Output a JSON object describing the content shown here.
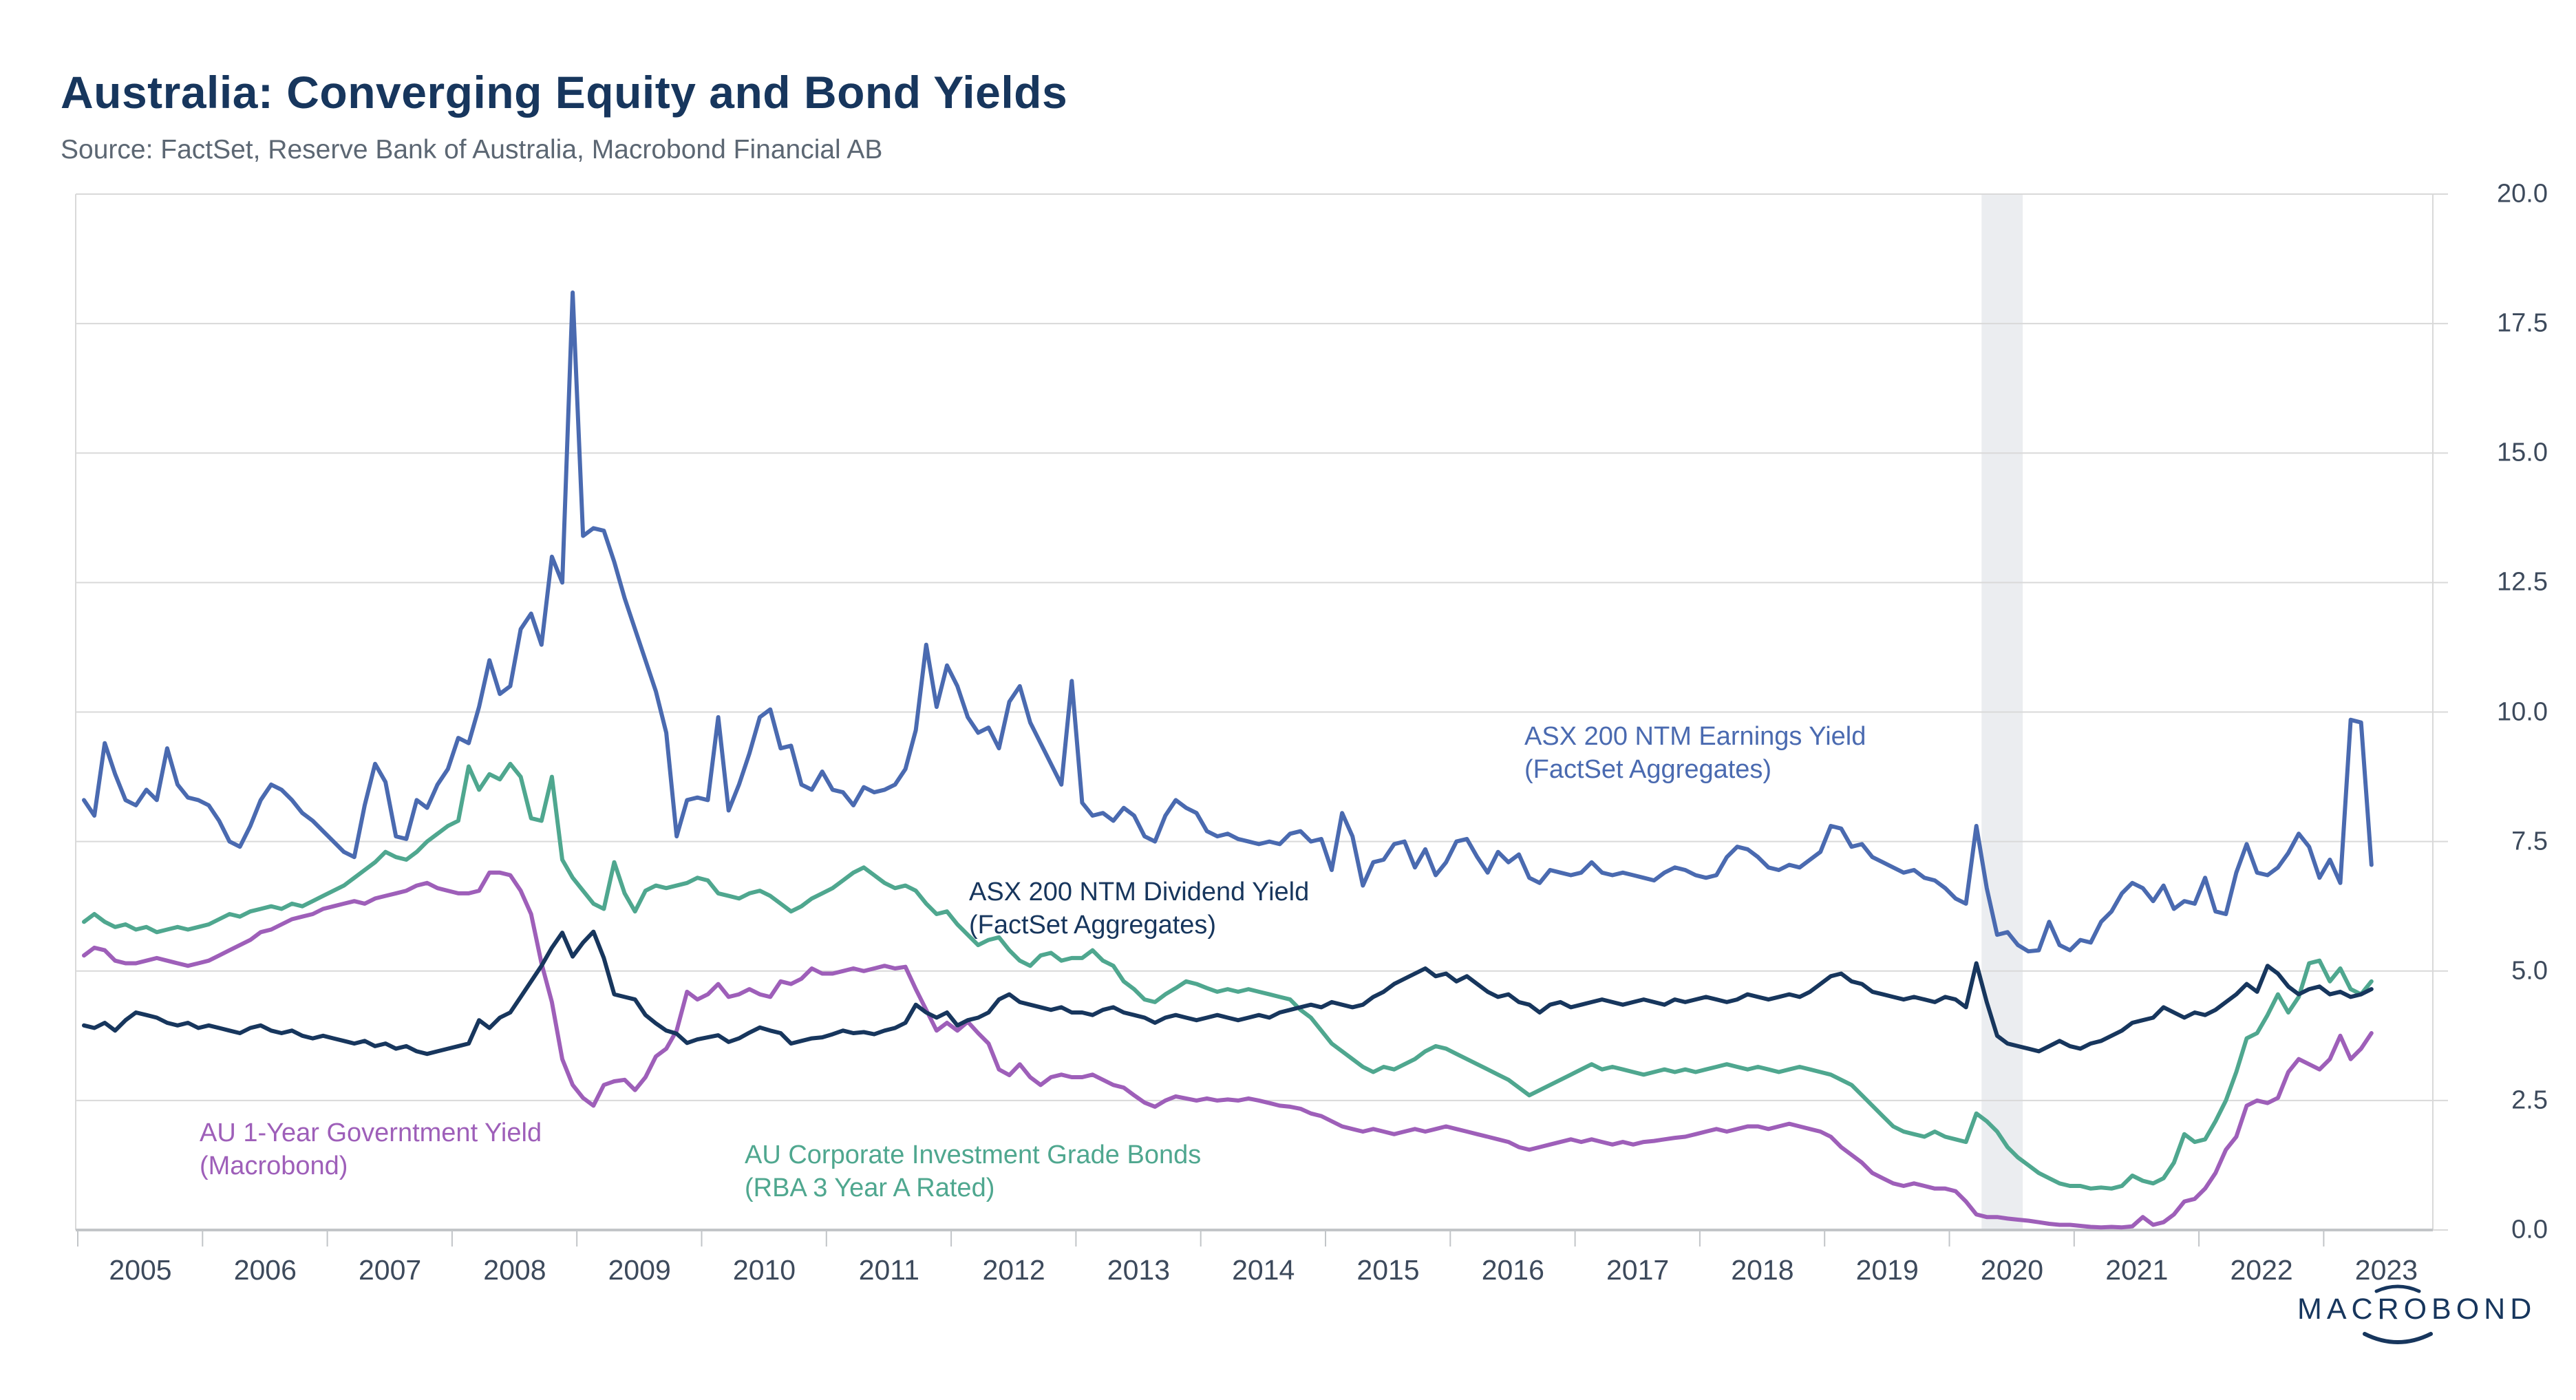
{
  "header": {
    "title": "Australia: Converging Equity and Bond Yields",
    "source": "Source: FactSet, Reserve Bank of Australia, Macrobond Financial AB"
  },
  "branding": {
    "logo_text": "MACROBOND"
  },
  "chart_data": {
    "type": "line",
    "title": "Australia: Converging Equity and Bond Yields",
    "frequency": "monthly",
    "start": "2005-01",
    "end": "2023-05",
    "grid": true,
    "legend_position": "in-plot annotations",
    "x_axis": {
      "tick_labels": [
        "2005",
        "2006",
        "2007",
        "2008",
        "2009",
        "2010",
        "2011",
        "2012",
        "2013",
        "2014",
        "2015",
        "2016",
        "2017",
        "2018",
        "2019",
        "2020",
        "2021",
        "2022",
        "2023"
      ]
    },
    "y_axis": {
      "position": "right",
      "min": 0,
      "max": 20,
      "tick_interval": 2.5,
      "tick_labels": [
        "20.0",
        "17.5",
        "15.0",
        "12.5",
        "10.0",
        "7.5",
        "5.0",
        "2.5",
        "0.0"
      ]
    },
    "recession_band": {
      "from_year": 2020.25,
      "to_year": 2020.58,
      "color": "#ebedf0"
    },
    "colors": {
      "grid": "#d9d9d9",
      "axis": "#c2c5c8",
      "tick_text": "#3d4a5c"
    },
    "annotations": {
      "earnings": {
        "line1": "ASX 200 NTM Earnings Yield",
        "line2": "(FactSet Aggregates)",
        "color": "#4a6ab0"
      },
      "dividend": {
        "line1": "ASX 200 NTM Dividend Yield",
        "line2": "(FactSet Aggregates)",
        "color": "#17365d"
      },
      "government": {
        "line1": "AU 1-Year Governtment Yield",
        "line2": "(Macrobond)",
        "color": "#9e5fb9"
      },
      "corporate": {
        "line1": "AU Corporate Investment Grade Bonds",
        "line2": "(RBA 3 Year A Rated)",
        "color": "#4fa78f"
      }
    },
    "series": [
      {
        "id": "government",
        "name": "AU 1-Year Governtment Yield (Macrobond)",
        "color": "#9e5fb9",
        "values": [
          5.3,
          5.45,
          5.4,
          5.2,
          5.15,
          5.15,
          5.2,
          5.25,
          5.2,
          5.15,
          5.1,
          5.15,
          5.2,
          5.3,
          5.4,
          5.5,
          5.6,
          5.75,
          5.8,
          5.9,
          6.0,
          6.05,
          6.1,
          6.2,
          6.25,
          6.3,
          6.35,
          6.3,
          6.4,
          6.45,
          6.5,
          6.55,
          6.65,
          6.7,
          6.6,
          6.55,
          6.5,
          6.5,
          6.55,
          6.9,
          6.9,
          6.85,
          6.55,
          6.1,
          5.15,
          4.4,
          3.3,
          2.8,
          2.55,
          2.4,
          2.8,
          2.87,
          2.9,
          2.7,
          2.95,
          3.35,
          3.5,
          3.85,
          4.6,
          4.45,
          4.55,
          4.75,
          4.5,
          4.55,
          4.65,
          4.55,
          4.5,
          4.8,
          4.75,
          4.85,
          5.05,
          4.95,
          4.95,
          5.0,
          5.05,
          5.0,
          5.05,
          5.1,
          5.05,
          5.08,
          4.65,
          4.25,
          3.85,
          4.0,
          3.85,
          4.02,
          3.8,
          3.6,
          3.1,
          2.99,
          3.2,
          2.95,
          2.8,
          2.95,
          3.0,
          2.95,
          2.95,
          3.0,
          2.9,
          2.8,
          2.75,
          2.6,
          2.46,
          2.38,
          2.5,
          2.58,
          2.54,
          2.5,
          2.54,
          2.5,
          2.52,
          2.5,
          2.54,
          2.5,
          2.45,
          2.4,
          2.38,
          2.34,
          2.25,
          2.2,
          2.1,
          2.0,
          1.95,
          1.9,
          1.95,
          1.9,
          1.85,
          1.9,
          1.95,
          1.9,
          1.95,
          2.0,
          1.95,
          1.9,
          1.85,
          1.8,
          1.75,
          1.7,
          1.6,
          1.55,
          1.6,
          1.65,
          1.7,
          1.75,
          1.7,
          1.75,
          1.7,
          1.65,
          1.7,
          1.65,
          1.7,
          1.72,
          1.75,
          1.78,
          1.8,
          1.85,
          1.9,
          1.95,
          1.9,
          1.95,
          2.0,
          2.0,
          1.95,
          2.0,
          2.05,
          2.0,
          1.95,
          1.9,
          1.8,
          1.6,
          1.45,
          1.3,
          1.1,
          1.0,
          0.9,
          0.85,
          0.9,
          0.85,
          0.8,
          0.8,
          0.75,
          0.55,
          0.3,
          0.25,
          0.25,
          0.22,
          0.2,
          0.18,
          0.15,
          0.12,
          0.1,
          0.1,
          0.08,
          0.06,
          0.05,
          0.06,
          0.05,
          0.07,
          0.25,
          0.1,
          0.15,
          0.3,
          0.55,
          0.6,
          0.8,
          1.1,
          1.55,
          1.8,
          2.4,
          2.5,
          2.45,
          2.55,
          3.05,
          3.3,
          3.2,
          3.1,
          3.3,
          3.75,
          3.3,
          3.5,
          3.8
        ]
      },
      {
        "id": "corporate",
        "name": "AU Corporate Investment Grade Bonds (RBA 3 Year A Rated)",
        "color": "#4fa78f",
        "values": [
          5.95,
          6.1,
          5.95,
          5.85,
          5.9,
          5.8,
          5.85,
          5.75,
          5.8,
          5.85,
          5.8,
          5.85,
          5.9,
          6.0,
          6.1,
          6.05,
          6.15,
          6.2,
          6.25,
          6.2,
          6.3,
          6.25,
          6.35,
          6.45,
          6.55,
          6.65,
          6.8,
          6.95,
          7.1,
          7.3,
          7.2,
          7.15,
          7.3,
          7.5,
          7.65,
          7.8,
          7.9,
          8.95,
          8.5,
          8.8,
          8.7,
          9.0,
          8.75,
          7.95,
          7.9,
          8.75,
          7.15,
          6.8,
          6.55,
          6.3,
          6.2,
          7.1,
          6.5,
          6.15,
          6.55,
          6.65,
          6.6,
          6.65,
          6.7,
          6.8,
          6.75,
          6.5,
          6.45,
          6.4,
          6.5,
          6.55,
          6.45,
          6.3,
          6.15,
          6.25,
          6.4,
          6.5,
          6.6,
          6.75,
          6.9,
          7.0,
          6.85,
          6.7,
          6.6,
          6.65,
          6.55,
          6.3,
          6.1,
          6.15,
          5.9,
          5.7,
          5.5,
          5.6,
          5.65,
          5.4,
          5.2,
          5.1,
          5.3,
          5.35,
          5.2,
          5.25,
          5.25,
          5.4,
          5.2,
          5.1,
          4.8,
          4.65,
          4.45,
          4.4,
          4.55,
          4.67,
          4.8,
          4.75,
          4.67,
          4.6,
          4.65,
          4.6,
          4.65,
          4.6,
          4.55,
          4.5,
          4.45,
          4.25,
          4.1,
          3.85,
          3.6,
          3.45,
          3.3,
          3.15,
          3.05,
          3.15,
          3.1,
          3.2,
          3.3,
          3.45,
          3.55,
          3.5,
          3.4,
          3.3,
          3.2,
          3.1,
          3.0,
          2.9,
          2.75,
          2.6,
          2.7,
          2.8,
          2.9,
          3.0,
          3.1,
          3.2,
          3.1,
          3.15,
          3.1,
          3.05,
          3.0,
          3.05,
          3.1,
          3.05,
          3.1,
          3.05,
          3.1,
          3.15,
          3.2,
          3.15,
          3.1,
          3.15,
          3.1,
          3.05,
          3.1,
          3.15,
          3.1,
          3.05,
          3.0,
          2.9,
          2.8,
          2.6,
          2.4,
          2.2,
          2.0,
          1.9,
          1.85,
          1.8,
          1.9,
          1.8,
          1.75,
          1.7,
          2.25,
          2.1,
          1.9,
          1.6,
          1.4,
          1.25,
          1.1,
          1.0,
          0.9,
          0.85,
          0.85,
          0.8,
          0.82,
          0.8,
          0.85,
          1.05,
          0.95,
          0.9,
          1.0,
          1.3,
          1.85,
          1.7,
          1.75,
          2.1,
          2.5,
          3.05,
          3.7,
          3.8,
          4.15,
          4.55,
          4.2,
          4.5,
          5.15,
          5.2,
          4.8,
          5.05,
          4.65,
          4.55,
          4.8
        ]
      },
      {
        "id": "dividend",
        "name": "ASX 200 NTM Dividend Yield (FactSet Aggregates)",
        "color": "#17365d",
        "values": [
          3.95,
          3.9,
          4.0,
          3.85,
          4.05,
          4.2,
          4.15,
          4.1,
          4.0,
          3.95,
          4.0,
          3.9,
          3.95,
          3.9,
          3.85,
          3.8,
          3.9,
          3.95,
          3.85,
          3.8,
          3.85,
          3.75,
          3.7,
          3.75,
          3.7,
          3.65,
          3.6,
          3.65,
          3.55,
          3.6,
          3.5,
          3.55,
          3.45,
          3.4,
          3.45,
          3.5,
          3.55,
          3.6,
          4.05,
          3.9,
          4.1,
          4.2,
          4.5,
          4.8,
          5.1,
          5.45,
          5.74,
          5.28,
          5.55,
          5.76,
          5.25,
          4.55,
          4.5,
          4.45,
          4.15,
          3.99,
          3.85,
          3.79,
          3.61,
          3.68,
          3.72,
          3.76,
          3.63,
          3.7,
          3.81,
          3.91,
          3.85,
          3.8,
          3.6,
          3.65,
          3.7,
          3.72,
          3.78,
          3.85,
          3.8,
          3.82,
          3.78,
          3.85,
          3.9,
          4.0,
          4.35,
          4.2,
          4.1,
          4.2,
          3.95,
          4.05,
          4.1,
          4.2,
          4.45,
          4.55,
          4.4,
          4.35,
          4.3,
          4.25,
          4.3,
          4.2,
          4.2,
          4.15,
          4.25,
          4.3,
          4.2,
          4.15,
          4.1,
          4.0,
          4.1,
          4.15,
          4.1,
          4.05,
          4.1,
          4.15,
          4.1,
          4.05,
          4.1,
          4.15,
          4.1,
          4.2,
          4.25,
          4.3,
          4.35,
          4.3,
          4.4,
          4.35,
          4.3,
          4.35,
          4.5,
          4.6,
          4.75,
          4.85,
          4.95,
          5.05,
          4.9,
          4.95,
          4.8,
          4.9,
          4.75,
          4.6,
          4.5,
          4.55,
          4.4,
          4.35,
          4.2,
          4.35,
          4.4,
          4.3,
          4.35,
          4.4,
          4.45,
          4.4,
          4.35,
          4.4,
          4.45,
          4.4,
          4.35,
          4.45,
          4.4,
          4.45,
          4.5,
          4.45,
          4.4,
          4.45,
          4.55,
          4.5,
          4.45,
          4.5,
          4.55,
          4.5,
          4.6,
          4.75,
          4.9,
          4.95,
          4.8,
          4.75,
          4.6,
          4.55,
          4.5,
          4.45,
          4.5,
          4.45,
          4.4,
          4.5,
          4.45,
          4.3,
          5.15,
          4.4,
          3.75,
          3.6,
          3.55,
          3.5,
          3.45,
          3.55,
          3.65,
          3.55,
          3.5,
          3.6,
          3.65,
          3.75,
          3.85,
          4.0,
          4.05,
          4.1,
          4.3,
          4.2,
          4.1,
          4.2,
          4.15,
          4.25,
          4.4,
          4.55,
          4.75,
          4.6,
          5.1,
          4.95,
          4.7,
          4.55,
          4.65,
          4.7,
          4.55,
          4.6,
          4.5,
          4.55,
          4.65
        ]
      },
      {
        "id": "earnings",
        "name": "ASX 200 NTM Earnings Yield (FactSet Aggregates)",
        "color": "#4a6ab0",
        "values": [
          8.3,
          8.0,
          9.4,
          8.8,
          8.3,
          8.2,
          8.5,
          8.3,
          9.3,
          8.6,
          8.35,
          8.3,
          8.2,
          7.9,
          7.5,
          7.4,
          7.8,
          8.3,
          8.6,
          8.5,
          8.3,
          8.05,
          7.9,
          7.7,
          7.5,
          7.3,
          7.2,
          8.2,
          9.0,
          8.65,
          7.6,
          7.55,
          8.3,
          8.15,
          8.6,
          8.9,
          9.5,
          9.4,
          10.1,
          11.0,
          10.35,
          10.5,
          11.6,
          11.9,
          11.3,
          13.0,
          12.5,
          18.1,
          13.4,
          13.55,
          13.5,
          12.9,
          12.2,
          11.6,
          11.0,
          10.4,
          9.6,
          7.6,
          8.3,
          8.35,
          8.3,
          9.9,
          8.1,
          8.6,
          9.2,
          9.9,
          10.05,
          9.3,
          9.35,
          8.6,
          8.5,
          8.85,
          8.5,
          8.45,
          8.2,
          8.55,
          8.45,
          8.5,
          8.6,
          8.9,
          9.65,
          11.3,
          10.1,
          10.9,
          10.5,
          9.9,
          9.6,
          9.7,
          9.3,
          10.2,
          10.5,
          9.8,
          9.4,
          9.0,
          8.6,
          10.6,
          8.25,
          8.0,
          8.05,
          7.9,
          8.15,
          8.0,
          7.6,
          7.5,
          8.0,
          8.3,
          8.15,
          8.05,
          7.7,
          7.6,
          7.65,
          7.55,
          7.5,
          7.45,
          7.5,
          7.45,
          7.65,
          7.7,
          7.5,
          7.55,
          6.95,
          8.05,
          7.6,
          6.65,
          7.1,
          7.15,
          7.45,
          7.5,
          7.0,
          7.35,
          6.85,
          7.1,
          7.5,
          7.55,
          7.2,
          6.9,
          7.3,
          7.1,
          7.25,
          6.8,
          6.7,
          6.95,
          6.9,
          6.85,
          6.9,
          7.1,
          6.9,
          6.85,
          6.9,
          6.85,
          6.8,
          6.75,
          6.9,
          7.0,
          6.95,
          6.85,
          6.8,
          6.85,
          7.2,
          7.4,
          7.35,
          7.2,
          7.0,
          6.95,
          7.05,
          7.0,
          7.15,
          7.3,
          7.8,
          7.75,
          7.4,
          7.45,
          7.2,
          7.1,
          7.0,
          6.9,
          6.95,
          6.8,
          6.75,
          6.6,
          6.4,
          6.3,
          7.8,
          6.6,
          5.7,
          5.75,
          5.5,
          5.38,
          5.4,
          5.95,
          5.5,
          5.4,
          5.6,
          5.55,
          5.95,
          6.15,
          6.5,
          6.7,
          6.6,
          6.35,
          6.65,
          6.2,
          6.35,
          6.3,
          6.8,
          6.15,
          6.1,
          6.9,
          7.45,
          6.9,
          6.85,
          7.0,
          7.28,
          7.65,
          7.4,
          6.8,
          7.15,
          6.7,
          9.85,
          9.8,
          7.05
        ]
      }
    ]
  }
}
